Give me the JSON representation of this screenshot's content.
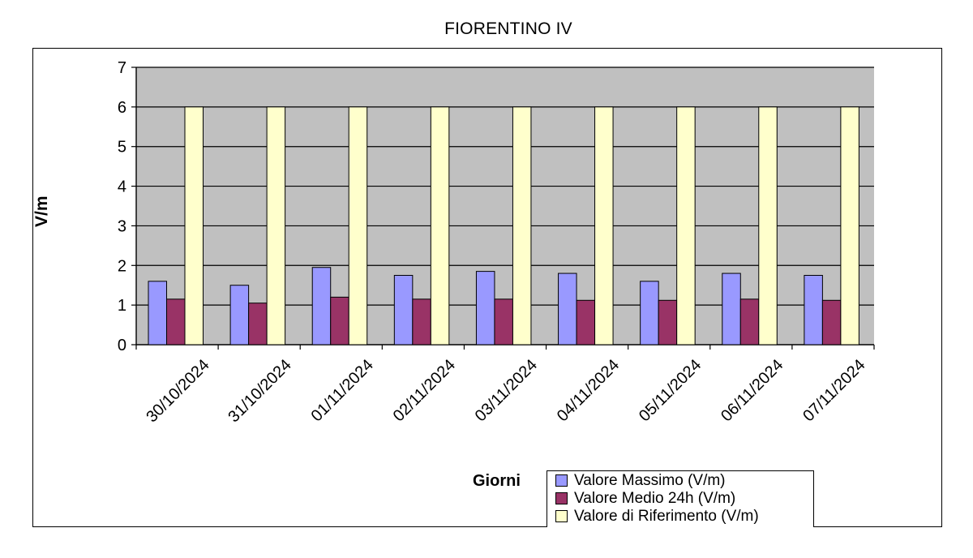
{
  "chart_data": {
    "type": "bar",
    "title": "FIORENTINO IV",
    "xlabel": "Giorni",
    "ylabel": "V/m",
    "ylim": [
      0,
      7
    ],
    "yticks": [
      0,
      1,
      2,
      3,
      4,
      5,
      6,
      7
    ],
    "grid": true,
    "legend_position": "bottom-right",
    "categories": [
      "30/10/2024",
      "31/10/2024",
      "01/11/2024",
      "02/11/2024",
      "03/11/2024",
      "04/11/2024",
      "05/11/2024",
      "06/11/2024",
      "07/11/2024"
    ],
    "series": [
      {
        "name": "Valore Massimo (V/m)",
        "color": "#9999FF",
        "values": [
          1.6,
          1.5,
          1.95,
          1.75,
          1.85,
          1.8,
          1.6,
          1.8,
          1.75
        ]
      },
      {
        "name": "Valore Medio 24h (V/m)",
        "color": "#993366",
        "values": [
          1.15,
          1.05,
          1.2,
          1.15,
          1.15,
          1.12,
          1.12,
          1.15,
          1.12
        ]
      },
      {
        "name": "Valore di Riferimento (V/m)",
        "color": "#FFFFCC",
        "values": [
          6,
          6,
          6,
          6,
          6,
          6,
          6,
          6,
          6
        ]
      }
    ],
    "plot_background": "#C0C0C0"
  }
}
